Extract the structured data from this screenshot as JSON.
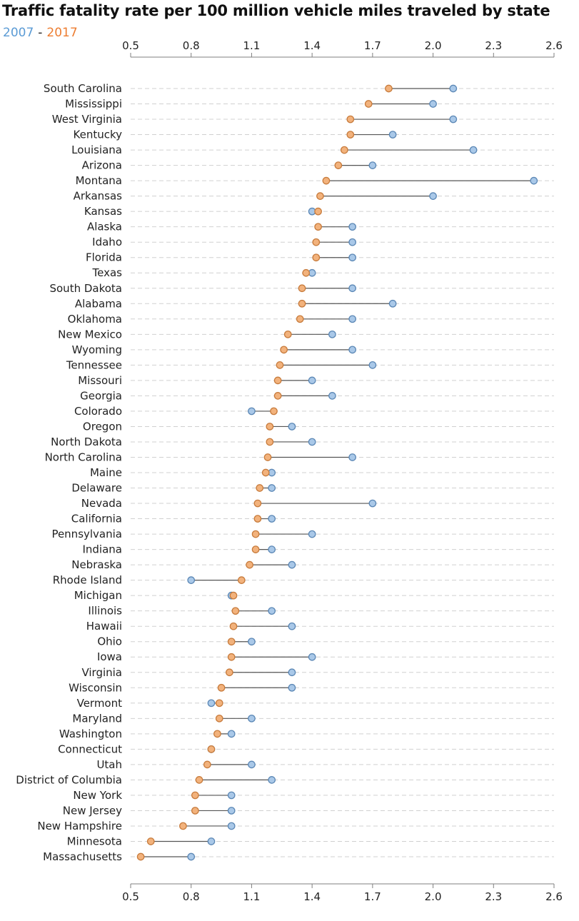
{
  "chart_data": {
    "type": "dumbbell",
    "title": "Traffic fatality rate per 100 million vehicle miles traveled by state",
    "legend": [
      {
        "label": "2007",
        "color": "#5b9bd5"
      },
      {
        "label": "2017",
        "color": "#ed7d31"
      }
    ],
    "legend_separator": "-",
    "xlim": [
      0.5,
      2.6
    ],
    "xticks": [
      "0.5",
      "0.8",
      "1.1",
      "1.4",
      "1.7",
      "2.0",
      "2.3",
      "2.6"
    ],
    "grid": "horizontal dashed",
    "colors": {
      "y2007_fill": "#a9c8e8",
      "y2007_stroke": "#5b87b5",
      "y2017_fill": "#f2b27c",
      "y2017_stroke": "#c77b3c",
      "connector": "#555555"
    },
    "series": [
      {
        "name": "2007",
        "values": [
          2.1,
          2.0,
          2.1,
          1.8,
          2.2,
          1.7,
          2.5,
          2.0,
          1.4,
          1.6,
          1.6,
          1.6,
          1.4,
          1.6,
          1.8,
          1.6,
          1.5,
          1.6,
          1.7,
          1.4,
          1.5,
          1.1,
          1.3,
          1.4,
          1.6,
          1.2,
          1.2,
          1.7,
          1.2,
          1.4,
          1.2,
          1.3,
          0.8,
          1.0,
          1.2,
          1.3,
          1.1,
          1.4,
          1.3,
          1.3,
          0.9,
          1.1,
          1.0,
          0.9,
          1.1,
          1.2,
          1.0,
          1.0,
          1.0,
          0.9,
          0.8
        ]
      },
      {
        "name": "2017",
        "values": [
          1.78,
          1.68,
          1.59,
          1.59,
          1.56,
          1.53,
          1.47,
          1.44,
          1.43,
          1.43,
          1.42,
          1.42,
          1.37,
          1.35,
          1.35,
          1.34,
          1.28,
          1.26,
          1.24,
          1.23,
          1.23,
          1.21,
          1.19,
          1.19,
          1.18,
          1.17,
          1.14,
          1.13,
          1.13,
          1.12,
          1.12,
          1.09,
          1.05,
          1.01,
          1.02,
          1.01,
          1.0,
          1.0,
          0.99,
          0.95,
          0.94,
          0.94,
          0.93,
          0.9,
          0.88,
          0.84,
          0.82,
          0.82,
          0.76,
          0.6,
          0.55
        ]
      }
    ],
    "categories": [
      "South Carolina",
      "Mississippi",
      "West Virginia",
      "Kentucky",
      "Louisiana",
      "Arizona",
      "Montana",
      "Arkansas",
      "Kansas",
      "Alaska",
      "Idaho",
      "Florida",
      "Texas",
      "South Dakota",
      "Alabama",
      "Oklahoma",
      "New Mexico",
      "Wyoming",
      "Tennessee",
      "Missouri",
      "Georgia",
      "Colorado",
      "Oregon",
      "North Dakota",
      "North Carolina",
      "Maine",
      "Delaware",
      "Nevada",
      "California",
      "Pennsylvania",
      "Indiana",
      "Nebraska",
      "Rhode Island",
      "Michigan",
      "Illinois",
      "Hawaii",
      "Ohio",
      "Iowa",
      "Virginia",
      "Wisconsin",
      "Vermont",
      "Maryland",
      "Washington",
      "Connecticut",
      "Utah",
      "District of Columbia",
      "New York",
      "New Jersey",
      "New Hampshire",
      "Minnesota",
      "Massachusetts"
    ]
  }
}
